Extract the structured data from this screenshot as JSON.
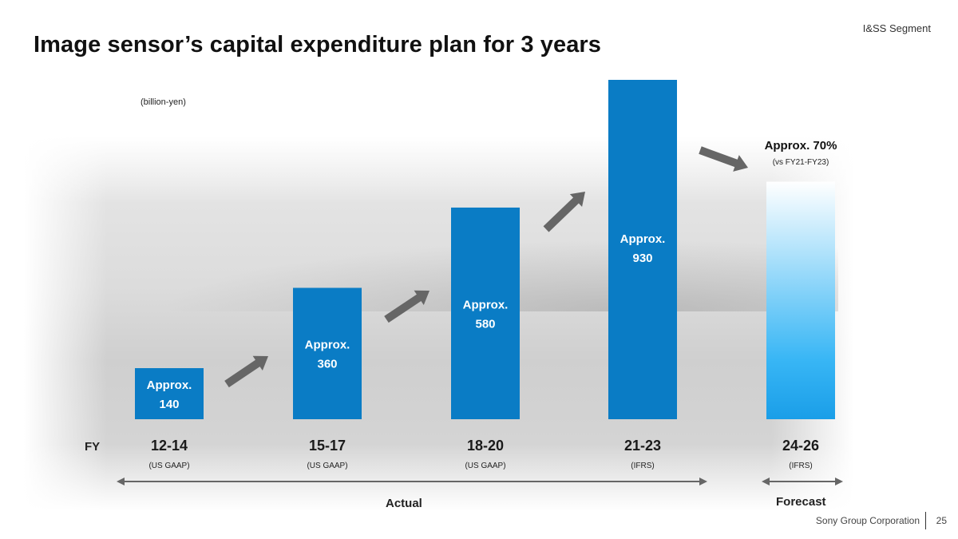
{
  "header": {
    "segment": "I&SS Segment",
    "title": "Image sensor’s capital expenditure plan for 3 years",
    "unit": "(billion-yen)"
  },
  "axis": {
    "fy_label": "FY",
    "actual_label": "Actual",
    "forecast_label": "Forecast"
  },
  "footer": {
    "company": "Sony Group Corporation",
    "page_number": "25"
  },
  "colors": {
    "bar": "#0a7cc5",
    "forecast_bar_top": "#ffffff",
    "forecast_bar_bottom": "#38b6f5",
    "arrow": "#666666",
    "bar_label": "#ffffff"
  },
  "chart_data": {
    "type": "bar",
    "categories": [
      "12-14",
      "15-17",
      "18-20",
      "21-23",
      "24-26"
    ],
    "accounting": [
      "(US GAAP)",
      "(US GAAP)",
      "(US GAAP)",
      "(IFRS)",
      "(IFRS)"
    ],
    "values": [
      140,
      360,
      580,
      930,
      651
    ],
    "value_labels": [
      [
        "Approx.",
        "140"
      ],
      [
        "Approx.",
        "360"
      ],
      [
        "Approx.",
        "580"
      ],
      [
        "Approx.",
        "930"
      ],
      [
        "Approx. 70%",
        "(vs FY21-FY23)"
      ]
    ],
    "forecast_index": 4,
    "ylim": [
      0,
      930
    ]
  }
}
